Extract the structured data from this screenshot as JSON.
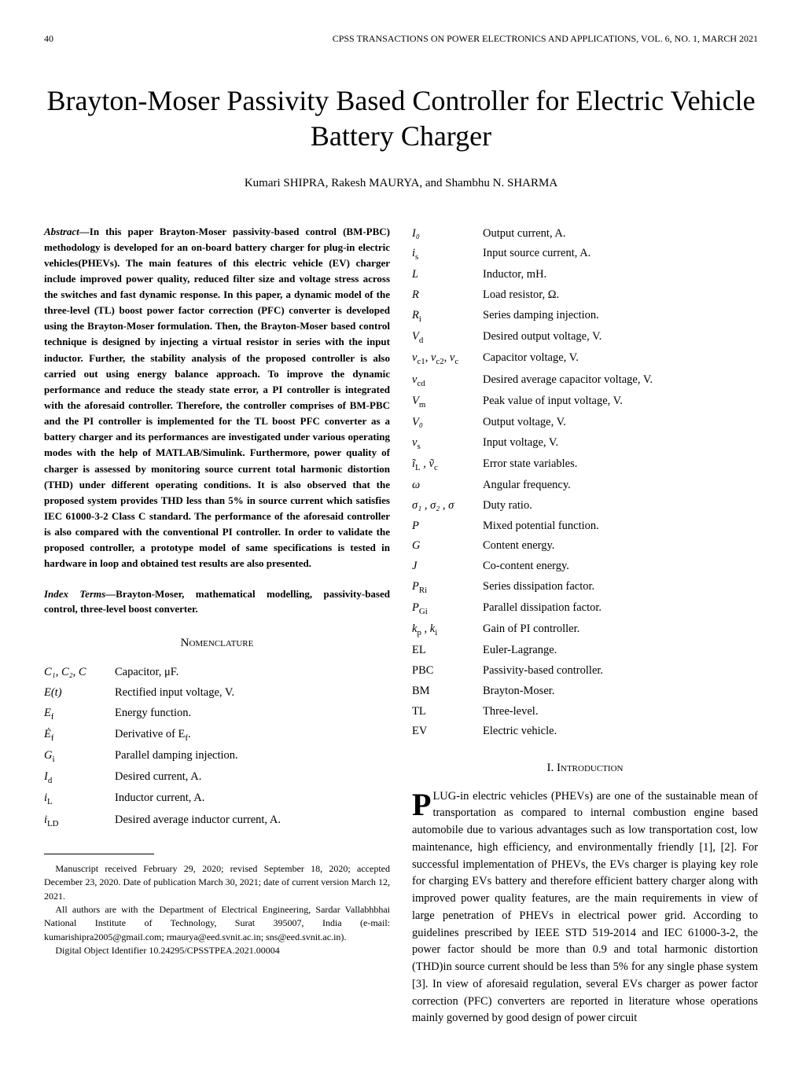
{
  "header": {
    "page_number": "40",
    "journal": "CPSS TRANSACTIONS ON POWER ELECTRONICS AND APPLICATIONS, VOL. 6, NO. 1, MARCH 2021"
  },
  "title": "Brayton-Moser Passivity Based Controller for Electric Vehicle Battery Charger",
  "authors": "Kumari SHIPRA, Rakesh MAURYA, and Shambhu N. SHARMA",
  "abstract_label": "Abstract—",
  "abstract": "In this paper Brayton-Moser passivity-based control (BM-PBC) methodology is developed for an on-board battery charger for plug-in electric vehicles(PHEVs). The main features of this electric vehicle (EV) charger include improved power quality, reduced filter size and voltage stress across the switches and fast dynamic response. In this paper, a dynamic model of the three-level (TL) boost power factor correction (PFC) converter is developed using the Brayton-Moser formulation. Then, the Brayton-Moser based control technique is designed by injecting a virtual resistor in series with the input inductor. Further, the stability analysis of the proposed controller is also carried out using energy balance approach. To improve the dynamic performance and reduce the steady state error, a PI controller is integrated with the aforesaid controller. Therefore, the controller comprises of BM-PBC and the PI controller is implemented for the TL boost PFC converter as a battery charger and its performances are investigated under various operating modes with the help of MATLAB/Simulink. Furthermore, power quality of charger is assessed by monitoring source current total harmonic distortion (THD) under different operating conditions. It is also observed that the proposed system provides THD less than 5% in source current which satisfies IEC 61000-3-2 Class C standard. The performance of the aforesaid controller is also compared with the conventional PI controller. In order to validate the proposed controller, a prototype model of same specifications is tested in hardware in loop and obtained test results are also presented.",
  "index_terms_label": "Index Terms—",
  "index_terms": "Brayton-Moser, mathematical modelling, passivity-based control, three-level boost converter.",
  "nomenclature_heading": "Nomenclature",
  "introduction_heading": "I. Introduction",
  "nomenclature_left": [
    {
      "sym": "C₁, C₂, C",
      "def": "Capacitor, μF."
    },
    {
      "sym": "E(t)",
      "def": "Rectified input voltage, V."
    },
    {
      "sym": "E_f",
      "def": "Energy function."
    },
    {
      "sym": "Ė_f",
      "def": "Derivative of E_f."
    },
    {
      "sym": "G_i",
      "def": "Parallel damping injection."
    },
    {
      "sym": "I_d",
      "def": "Desired current, A."
    },
    {
      "sym": "i_L",
      "def": "Inductor current, A."
    },
    {
      "sym": "i_LD",
      "def": "Desired average inductor current, A."
    }
  ],
  "nomenclature_right": [
    {
      "sym": "I₀",
      "def": "Output current, A."
    },
    {
      "sym": "i_s",
      "def": "Input source current, A."
    },
    {
      "sym": "L",
      "def": "Inductor, mH."
    },
    {
      "sym": "R",
      "def": "Load resistor, Ω."
    },
    {
      "sym": "R_i",
      "def": "Series damping injection."
    },
    {
      "sym": "V_d",
      "def": "Desired output voltage, V."
    },
    {
      "sym": "v_c1, v_c2, v_c",
      "def": "Capacitor voltage, V."
    },
    {
      "sym": "v_cd",
      "def": "Desired average capacitor voltage, V."
    },
    {
      "sym": "V_m",
      "def": "Peak value of input voltage, V."
    },
    {
      "sym": "V₀",
      "def": "Output voltage, V."
    },
    {
      "sym": "v_s",
      "def": "Input voltage, V."
    },
    {
      "sym": "ĩ_L , ṽ_c",
      "def": "Error state variables."
    },
    {
      "sym": "ω",
      "def": "Angular frequency."
    },
    {
      "sym": "σ₁ , σ₂ , σ",
      "def": "Duty ratio."
    },
    {
      "sym": "P",
      "def": "Mixed potential function."
    },
    {
      "sym": "G",
      "def": "Content energy."
    },
    {
      "sym": "J",
      "def": "Co-content energy."
    },
    {
      "sym": "P_Ri",
      "def": "Series dissipation factor."
    },
    {
      "sym": "P_Gi",
      "def": "Parallel dissipation factor."
    },
    {
      "sym": "k_p , k_i",
      "def": "Gain of PI controller."
    },
    {
      "sym": "EL",
      "def": "Euler-Lagrange."
    },
    {
      "sym": "PBC",
      "def": "Passivity-based controller."
    },
    {
      "sym": "BM",
      "def": "Brayton-Moser."
    },
    {
      "sym": "TL",
      "def": "Three-level."
    },
    {
      "sym": "EV",
      "def": "Electric vehicle."
    }
  ],
  "introduction": {
    "dropcap": "P",
    "first_word_rest": "LUG-in",
    "body": " electric vehicles (PHEVs) are one of the sustainable mean of transportation as compared to internal combustion engine based automobile due to various advantages such as low transportation cost, low maintenance, high efficiency, and environmentally friendly [1], [2]. For successful implementation of PHEVs, the EVs charger is playing key role for charging EVs battery and therefore efficient battery charger along with improved power quality features, are the main requirements in view of large penetration of PHEVs in electrical power grid. According to guidelines prescribed by IEEE STD 519-2014 and IEC 61000-3-2, the power factor should be more than 0.9 and total harmonic distortion (THD)in source current should be less than 5% for any single phase system [3]. In view of aforesaid regulation, several EVs charger as power factor correction (PFC) converters are reported in literature whose operations mainly governed by good design of power circuit"
  },
  "footnotes": [
    "Manuscript received February 29, 2020; revised September 18, 2020; accepted December 23, 2020. Date of publication March 30, 2021; date of current version March 12, 2021.",
    "All authors are with the Department of Electrical Engineering, Sardar Vallabhbhai National Institute of Technology, Surat 395007, India (e-mail: kumarishipra2005@gmail.com; rmaurya@eed.svnit.ac.in; sns@eed.svnit.ac.in).",
    "Digital Object Identifier 10.24295/CPSSTPEA.2021.00004"
  ]
}
